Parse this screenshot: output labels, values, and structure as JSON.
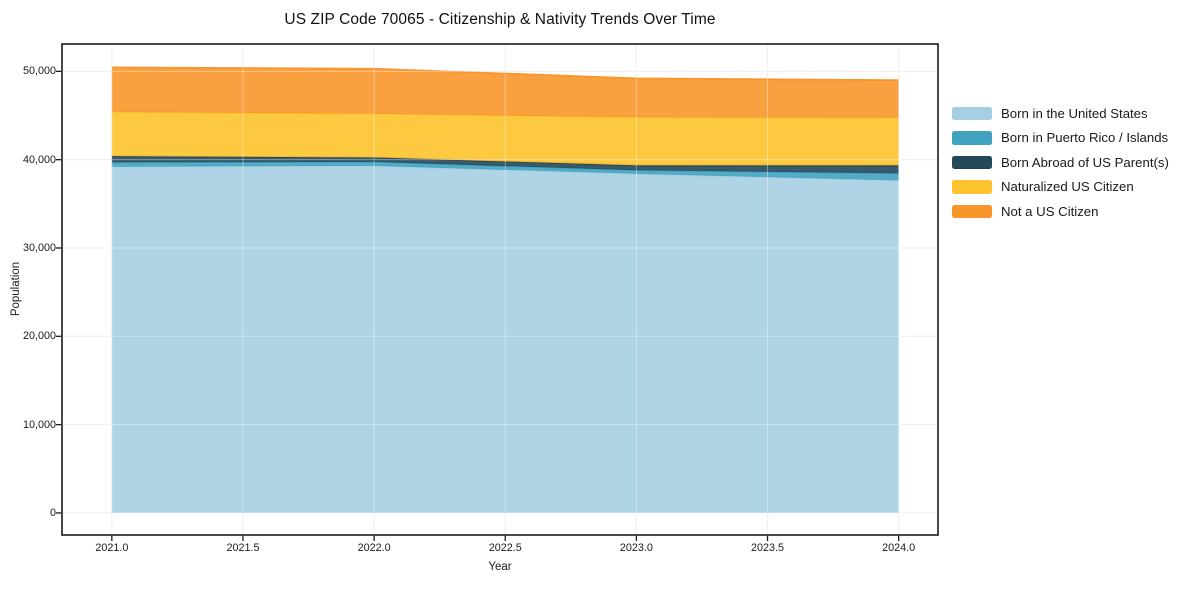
{
  "chart_data": {
    "type": "area",
    "stacked": true,
    "title": "US ZIP Code 70065 - Citizenship & Nativity Trends Over Time",
    "xlabel": "Year",
    "ylabel": "Population",
    "x": [
      2021,
      2022,
      2023,
      2024
    ],
    "series": [
      {
        "name": "Born in the United States",
        "color": "#a5cfe3",
        "values": [
          39200,
          39300,
          38400,
          37650
        ]
      },
      {
        "name": "Born in Puerto Rico / Islands",
        "color": "#41a2c0",
        "values": [
          500,
          450,
          400,
          800
        ]
      },
      {
        "name": "Born Abroad of US Parent(s)",
        "color": "#24485a",
        "values": [
          700,
          500,
          550,
          900
        ]
      },
      {
        "name": "Naturalized US Citizen",
        "color": "#fcc32c",
        "values": [
          5000,
          4950,
          5450,
          5400
        ]
      },
      {
        "name": "Not a US Citizen",
        "color": "#f8962c",
        "values": [
          5050,
          5100,
          4400,
          4250
        ]
      }
    ],
    "stacked_totals": [
      50450,
      50300,
      49200,
      49000
    ],
    "xticks": {
      "values": [
        2021.0,
        2021.5,
        2022.0,
        2022.5,
        2023.0,
        2023.5,
        2024.0
      ],
      "labels": [
        "2021.0",
        "2021.5",
        "2022.0",
        "2022.5",
        "2023.0",
        "2023.5",
        "2024.0"
      ]
    },
    "yticks": {
      "values": [
        0,
        10000,
        20000,
        30000,
        40000,
        50000
      ],
      "labels": [
        "0",
        "10,000",
        "20,000",
        "30,000",
        "40,000",
        "50,000"
      ]
    },
    "xlim": [
      2020.81,
      2024.15
    ],
    "ylim": [
      -2500,
      53100
    ],
    "grid": true,
    "legend_position": "right",
    "colors": {
      "axis": "#1a1a1a",
      "grid_below": "#e7e7e7",
      "grid_above": "rgba(255,255,255,0.38)",
      "background": "#ffffff"
    }
  }
}
